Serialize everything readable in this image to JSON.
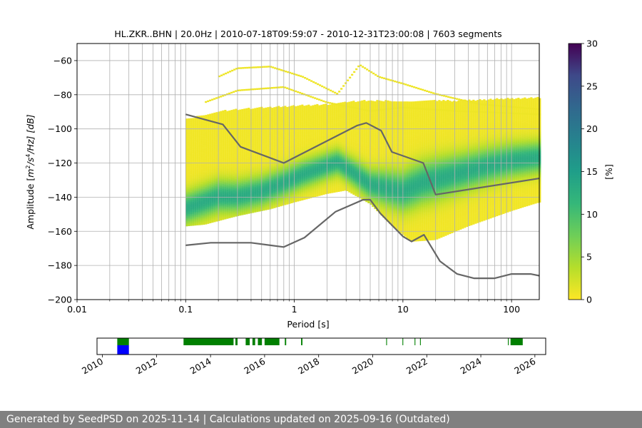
{
  "footer": {
    "text": "Generated by SeedPSD on 2025-11-14 | Calculations updated on 2025-09-16 (Outdated)"
  },
  "chart_data": [
    {
      "type": "heatmap",
      "title": "HL.ZKR..BHN | 20.0Hz | 2010-07-18T09:59:07 - 2010-12-31T23:00:08 | 7603 segments",
      "xlabel": "Period [s]",
      "ylabel_parts": {
        "pre": "Amplitude [",
        "m": "m",
        "sup1": "2",
        "mid": "/s",
        "sup2": "4",
        "post": "/Hz] [dB]"
      },
      "x_scale": "log",
      "xlim": [
        0.01,
        180
      ],
      "ylim": [
        -200,
        -50
      ],
      "x_ticks": [
        {
          "value": 0.01,
          "label": "0.01"
        },
        {
          "value": 0.1,
          "label": "0.1"
        },
        {
          "value": 1,
          "label": "1"
        },
        {
          "value": 10,
          "label": "10"
        },
        {
          "value": 100,
          "label": "100"
        }
      ],
      "y_ticks": [
        {
          "value": -60,
          "label": "−60"
        },
        {
          "value": -80,
          "label": "−80"
        },
        {
          "value": -100,
          "label": "−100"
        },
        {
          "value": -120,
          "label": "−120"
        },
        {
          "value": -140,
          "label": "−140"
        },
        {
          "value": -160,
          "label": "−160"
        },
        {
          "value": -180,
          "label": "−180"
        },
        {
          "value": -200,
          "label": "−200"
        }
      ],
      "grid": true,
      "colormap": "viridis_r",
      "colorbar": {
        "label": "[%]",
        "range": [
          0,
          30
        ],
        "ticks": [
          {
            "value": 0,
            "label": "0"
          },
          {
            "value": 5,
            "label": "5"
          },
          {
            "value": 10,
            "label": "10"
          },
          {
            "value": 15,
            "label": "15"
          },
          {
            "value": 20,
            "label": "20"
          },
          {
            "value": 25,
            "label": "25"
          },
          {
            "value": 30,
            "label": "30"
          }
        ]
      },
      "density_upper_edge": [
        [
          0.1,
          -95
        ],
        [
          0.2,
          -90
        ],
        [
          0.5,
          -88
        ],
        [
          1,
          -87
        ],
        [
          2,
          -86
        ],
        [
          4,
          -84
        ],
        [
          10,
          -84
        ],
        [
          30,
          -84
        ],
        [
          180,
          -82
        ]
      ],
      "density_lower_edge": [
        [
          0.1,
          -157
        ],
        [
          0.15,
          -156
        ],
        [
          0.3,
          -151
        ],
        [
          0.6,
          -147
        ],
        [
          1,
          -143
        ],
        [
          2,
          -138
        ],
        [
          3,
          -136
        ],
        [
          5,
          -144
        ],
        [
          8,
          -157
        ],
        [
          12,
          -166
        ],
        [
          20,
          -165
        ],
        [
          40,
          -157
        ],
        [
          100,
          -148
        ],
        [
          180,
          -143
        ]
      ],
      "density_mode": [
        [
          0.1,
          -147
        ],
        [
          0.15,
          -143
        ],
        [
          0.2,
          -140
        ],
        [
          0.3,
          -140
        ],
        [
          0.5,
          -137
        ],
        [
          0.8,
          -132
        ],
        [
          1.2,
          -127
        ],
        [
          2,
          -122
        ],
        [
          2.5,
          -120
        ],
        [
          3.5,
          -126
        ],
        [
          5,
          -133
        ],
        [
          7,
          -135
        ],
        [
          10,
          -137
        ],
        [
          15,
          -132
        ],
        [
          30,
          -127
        ],
        [
          60,
          -122
        ],
        [
          100,
          -119
        ],
        [
          180,
          -117
        ]
      ],
      "outlier_curves": [
        [
          [
            0.2,
            -70
          ],
          [
            0.3,
            -65
          ],
          [
            0.6,
            -64
          ],
          [
            1.2,
            -70
          ],
          [
            2.5,
            -80
          ],
          [
            4,
            -63
          ],
          [
            6,
            -70
          ],
          [
            10,
            -74
          ],
          [
            20,
            -80
          ],
          [
            50,
            -86
          ],
          [
            180,
            -89
          ]
        ],
        [
          [
            0.15,
            -85
          ],
          [
            0.3,
            -78
          ],
          [
            0.8,
            -76
          ],
          [
            2,
            -85
          ],
          [
            5,
            -90
          ],
          [
            10,
            -88
          ],
          [
            30,
            -90
          ],
          [
            180,
            -92
          ]
        ]
      ],
      "series": [
        {
          "name": "",
          "color": "#666666",
          "points": [
            [
              0.1,
              -91.5
            ],
            [
              0.22,
              -97.4
            ],
            [
              0.32,
              -110.5
            ],
            [
              0.8,
              -120
            ],
            [
              3.8,
              -98
            ],
            [
              4.6,
              -96.5
            ],
            [
              6.3,
              -101
            ],
            [
              7.9,
              -113.5
            ],
            [
              15.4,
              -120
            ],
            [
              20,
              -138.5
            ],
            [
              180,
              -129
            ]
          ]
        },
        {
          "name": "",
          "color": "#666666",
          "points": [
            [
              0.1,
              -168.2
            ],
            [
              0.17,
              -166.7
            ],
            [
              0.4,
              -166.7
            ],
            [
              0.8,
              -169.2
            ],
            [
              1.24,
              -163.7
            ],
            [
              2.4,
              -148.5
            ],
            [
              4.3,
              -141.5
            ],
            [
              5,
              -141.5
            ],
            [
              6.2,
              -149.5
            ],
            [
              10,
              -163
            ],
            [
              12,
              -166
            ],
            [
              15.6,
              -162
            ],
            [
              21.9,
              -177.5
            ],
            [
              31.6,
              -185
            ],
            [
              45,
              -187.5
            ],
            [
              70,
              -187.5
            ],
            [
              100,
              -185
            ],
            [
              150,
              -185
            ],
            [
              180,
              -186
            ]
          ]
        }
      ]
    },
    {
      "type": "timeline",
      "x_ticks": [
        "2010",
        "2012",
        "2014",
        "2016",
        "2018",
        "2020",
        "2022",
        "2024",
        "2026"
      ],
      "xlim": [
        2009.8,
        2026.4
      ],
      "rows": {
        "top": {
          "color": "#008000",
          "spans": [
            [
              2010.55,
              2010.98
            ],
            [
              2013.0,
              2014.85
            ],
            [
              2014.92,
              2015.0
            ],
            [
              2015.3,
              2015.45
            ],
            [
              2015.55,
              2015.65
            ],
            [
              2015.75,
              2015.9
            ],
            [
              2016.0,
              2016.55
            ],
            [
              2016.75,
              2016.8
            ],
            [
              2017.35,
              2017.4
            ],
            [
              2020.5,
              2020.53
            ],
            [
              2021.1,
              2021.13
            ],
            [
              2021.55,
              2021.58
            ],
            [
              2021.75,
              2021.78
            ],
            [
              2025.0,
              2025.03
            ],
            [
              2025.1,
              2025.55
            ]
          ]
        },
        "bottom": {
          "color": "#0000ff",
          "spans": [
            [
              2010.55,
              2010.98
            ]
          ]
        }
      }
    }
  ]
}
